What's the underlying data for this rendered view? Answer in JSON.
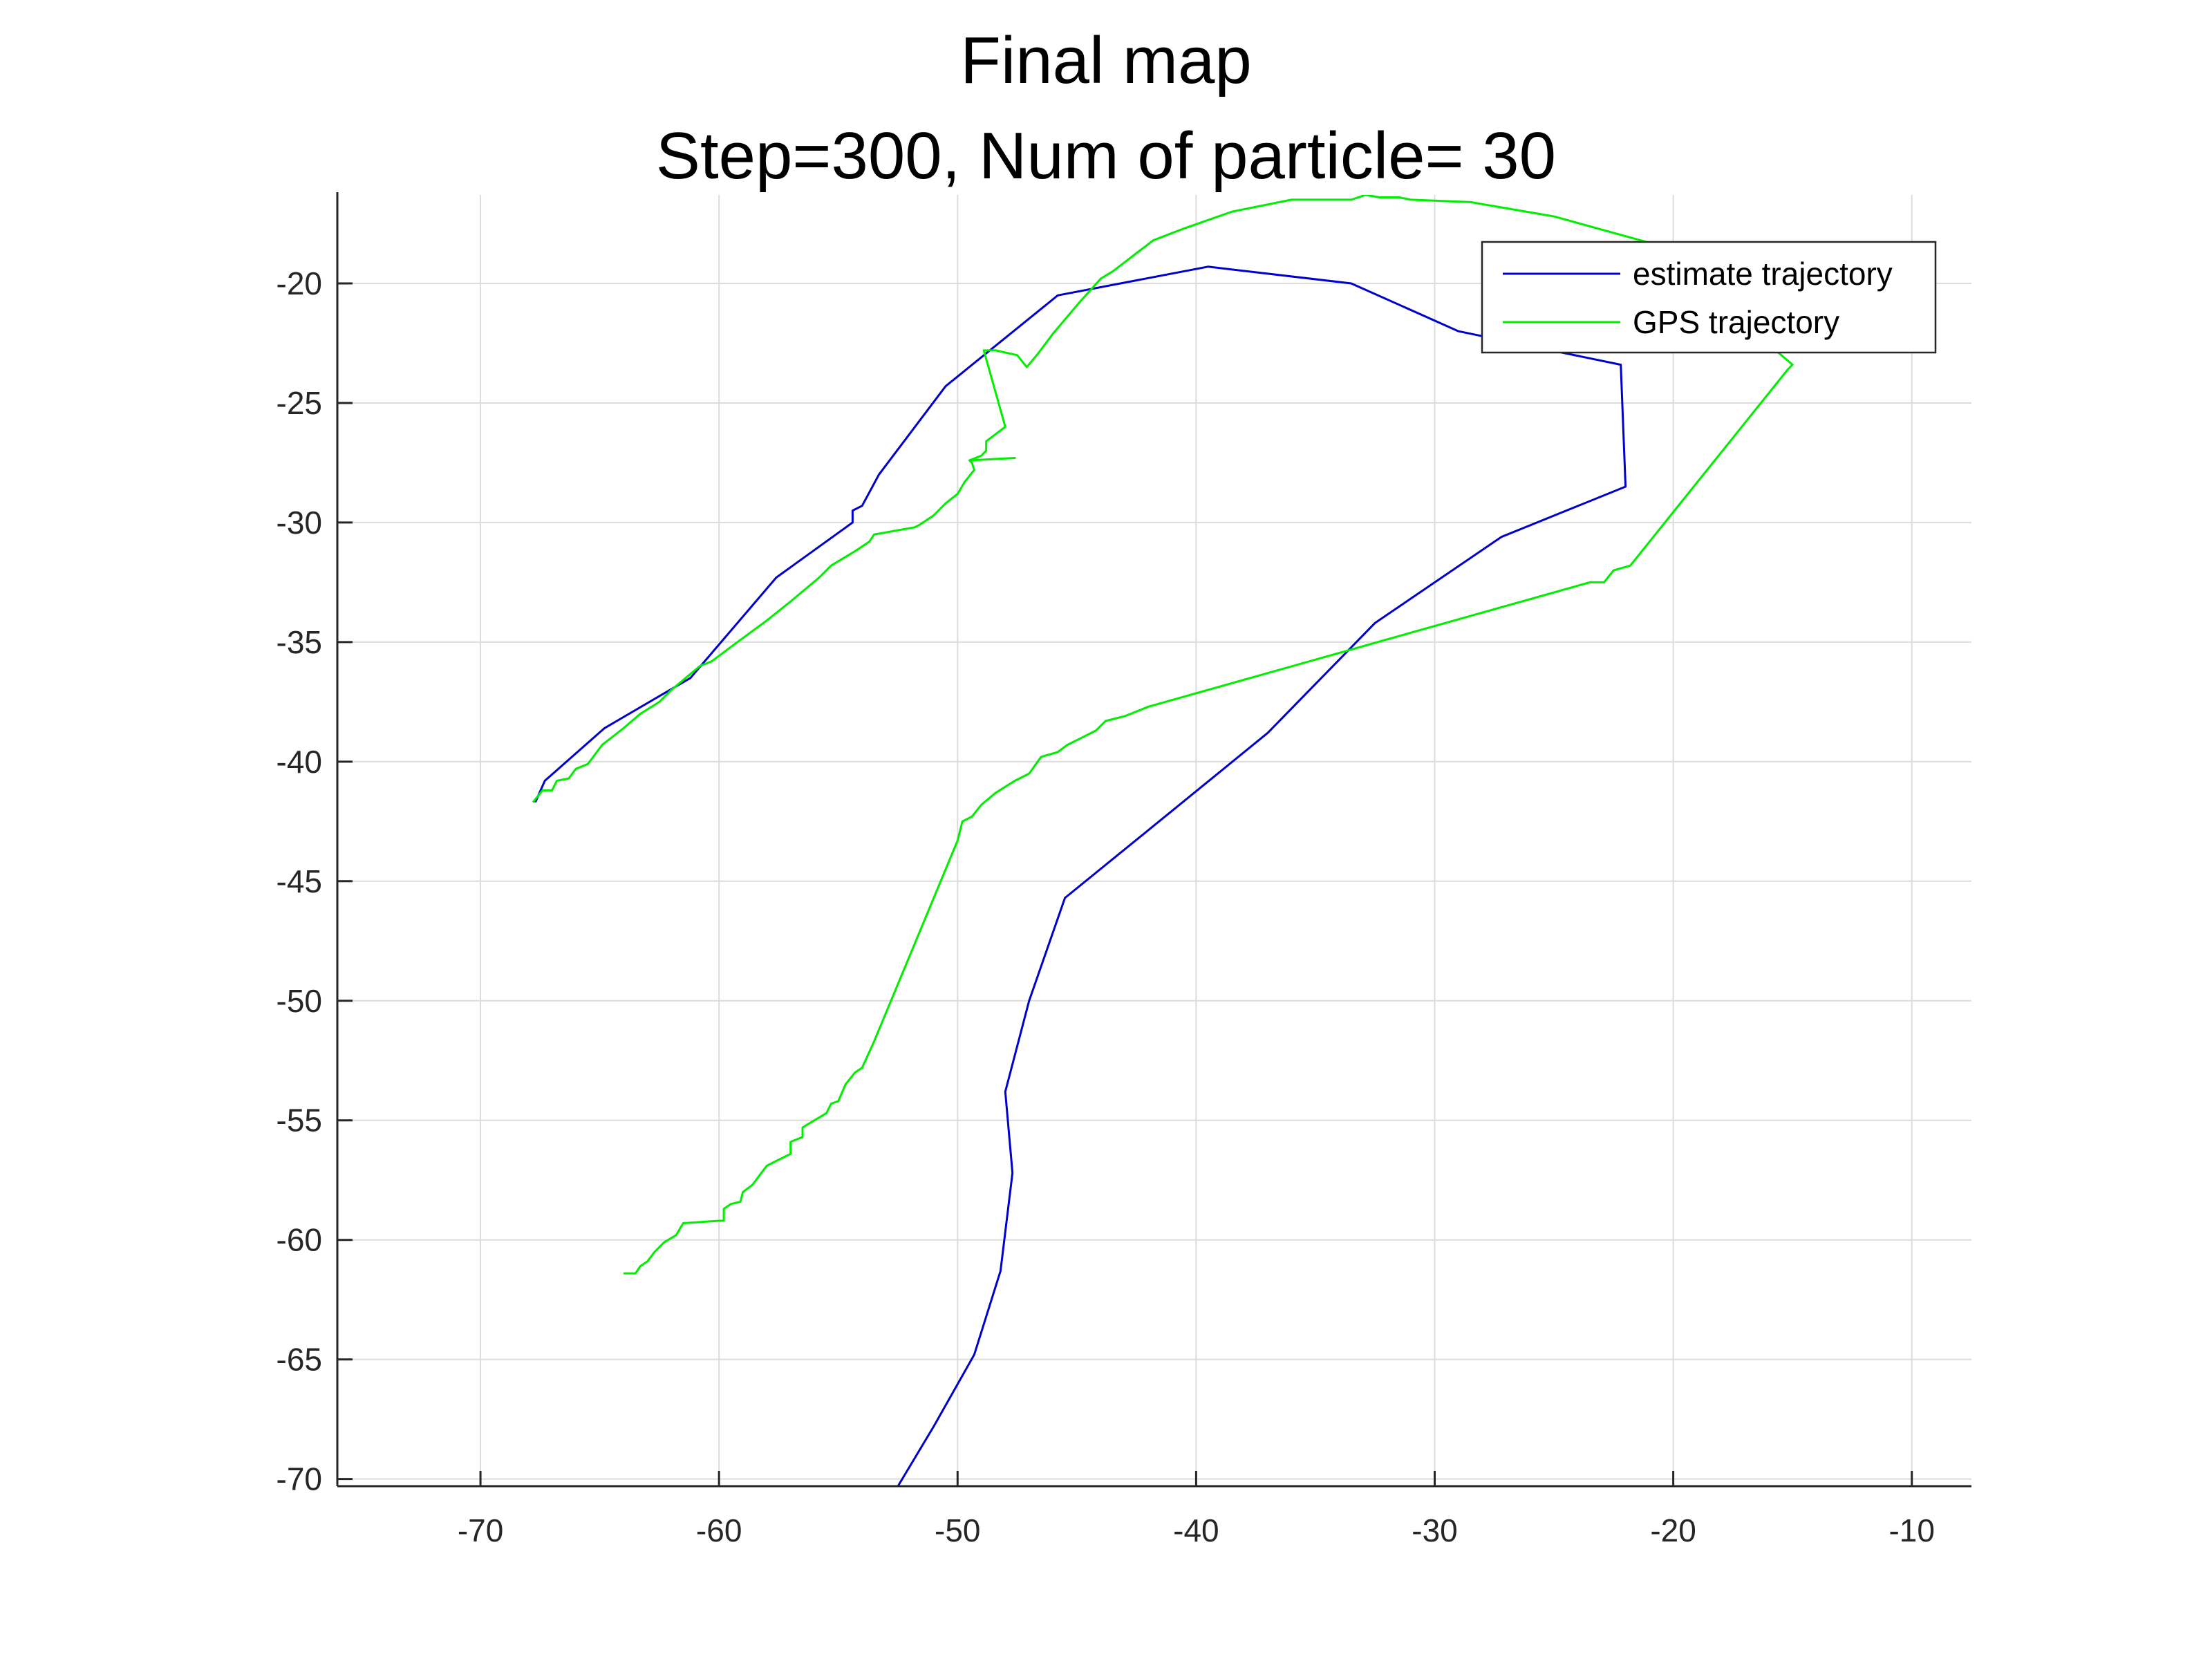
{
  "chart_data": {
    "type": "line",
    "title": "Final map",
    "subtitle": "Step=300, Num of particle= 30",
    "xlabel": "",
    "ylabel": "",
    "xlim": [
      -76,
      -7.5
    ],
    "ylim": [
      -70.3,
      -16.3
    ],
    "xticks": [
      "-70",
      "-60",
      "-50",
      "-40",
      "-30",
      "-20",
      "-10"
    ],
    "xtick_values": [
      -70,
      -60,
      -50,
      -40,
      -30,
      -20,
      -10
    ],
    "yticks": [
      "-20",
      "-25",
      "-30",
      "-35",
      "-40",
      "-45",
      "-50",
      "-55",
      "-60",
      "-65",
      "-70"
    ],
    "ytick_values": [
      -20,
      -25,
      -30,
      -35,
      -40,
      -45,
      -50,
      -55,
      -60,
      -65,
      -70
    ],
    "grid": true,
    "legend_position": "top-right",
    "series": [
      {
        "name": "estimate trajectory",
        "color": "#0000cc",
        "points": [
          [
            -67.7,
            -41.7
          ],
          [
            -67.3,
            -40.8
          ],
          [
            -64.8,
            -38.6
          ],
          [
            -61.2,
            -36.5
          ],
          [
            -57.6,
            -32.3
          ],
          [
            -54.4,
            -30.0
          ],
          [
            -54.4,
            -29.5
          ],
          [
            -54.0,
            -29.3
          ],
          [
            -53.3,
            -28.0
          ],
          [
            -50.5,
            -24.3
          ],
          [
            -45.8,
            -20.5
          ],
          [
            -39.5,
            -19.3
          ],
          [
            -33.5,
            -20.0
          ],
          [
            -29.0,
            -22.0
          ],
          [
            -22.2,
            -23.4
          ],
          [
            -22.0,
            -28.5
          ],
          [
            -27.2,
            -30.6
          ],
          [
            -32.5,
            -34.2
          ],
          [
            -37.0,
            -38.8
          ],
          [
            -41.8,
            -42.7
          ],
          [
            -45.5,
            -45.7
          ],
          [
            -47.0,
            -50.0
          ],
          [
            -48.0,
            -53.8
          ],
          [
            -47.7,
            -57.2
          ],
          [
            -48.2,
            -61.3
          ],
          [
            -49.3,
            -64.8
          ],
          [
            -51.0,
            -67.8
          ],
          [
            -52.5,
            -70.3
          ]
        ]
      },
      {
        "name": "GPS trajectory",
        "color": "#00ee00",
        "points": [
          [
            -64.0,
            -61.4
          ],
          [
            -63.5,
            -61.4
          ],
          [
            -63.3,
            -61.1
          ],
          [
            -63.0,
            -60.9
          ],
          [
            -62.7,
            -60.5
          ],
          [
            -62.3,
            -60.1
          ],
          [
            -61.8,
            -59.8
          ],
          [
            -61.5,
            -59.3
          ],
          [
            -60.0,
            -59.2
          ],
          [
            -59.8,
            -59.2
          ],
          [
            -59.8,
            -58.7
          ],
          [
            -59.5,
            -58.5
          ],
          [
            -59.1,
            -58.4
          ],
          [
            -59.0,
            -58.0
          ],
          [
            -58.6,
            -57.7
          ],
          [
            -58.3,
            -57.3
          ],
          [
            -58.0,
            -56.9
          ],
          [
            -57.6,
            -56.7
          ],
          [
            -57.0,
            -56.4
          ],
          [
            -57.0,
            -55.9
          ],
          [
            -56.5,
            -55.7
          ],
          [
            -56.5,
            -55.3
          ],
          [
            -56.0,
            -55.0
          ],
          [
            -55.5,
            -54.7
          ],
          [
            -55.3,
            -54.3
          ],
          [
            -55.0,
            -54.2
          ],
          [
            -54.7,
            -53.5
          ],
          [
            -54.3,
            -53.0
          ],
          [
            -54.0,
            -52.8
          ],
          [
            -53.5,
            -51.7
          ],
          [
            -50.0,
            -43.3
          ],
          [
            -49.8,
            -42.5
          ],
          [
            -49.4,
            -42.3
          ],
          [
            -49.0,
            -41.8
          ],
          [
            -48.4,
            -41.3
          ],
          [
            -47.6,
            -40.8
          ],
          [
            -47.0,
            -40.5
          ],
          [
            -46.5,
            -39.8
          ],
          [
            -45.8,
            -39.6
          ],
          [
            -45.4,
            -39.3
          ],
          [
            -44.8,
            -39.0
          ],
          [
            -44.2,
            -38.7
          ],
          [
            -43.8,
            -38.3
          ],
          [
            -43.0,
            -38.1
          ],
          [
            -42.0,
            -37.7
          ],
          [
            -23.5,
            -32.5
          ],
          [
            -22.9,
            -32.5
          ],
          [
            -22.5,
            -32.0
          ],
          [
            -21.8,
            -31.8
          ],
          [
            -15.2,
            -23.6
          ],
          [
            -15.0,
            -23.4
          ],
          [
            -21.0,
            -18.3
          ],
          [
            -25.0,
            -17.2
          ],
          [
            -28.5,
            -16.6
          ],
          [
            -31.0,
            -16.5
          ],
          [
            -31.5,
            -16.4
          ],
          [
            -32.3,
            -16.4
          ],
          [
            -32.9,
            -16.3
          ],
          [
            -33.5,
            -16.5
          ],
          [
            -36.0,
            -16.5
          ],
          [
            -38.5,
            -17.0
          ],
          [
            -40.5,
            -17.7
          ],
          [
            -41.8,
            -18.2
          ],
          [
            -43.5,
            -19.5
          ],
          [
            -44.0,
            -19.8
          ],
          [
            -44.9,
            -20.8
          ],
          [
            -46.0,
            -22.1
          ],
          [
            -46.6,
            -22.9
          ],
          [
            -47.1,
            -23.5
          ],
          [
            -47.5,
            -23.0
          ],
          [
            -48.4,
            -22.8
          ],
          [
            -48.9,
            -22.8
          ],
          [
            -48.9,
            -22.8
          ],
          [
            -48.0,
            -26.0
          ],
          [
            -48.4,
            -26.3
          ],
          [
            -48.8,
            -26.6
          ],
          [
            -48.8,
            -27.0
          ],
          [
            -49.0,
            -27.2
          ],
          [
            -49.5,
            -27.4
          ],
          [
            -47.6,
            -27.3
          ],
          [
            -49.5,
            -27.4
          ],
          [
            -49.4,
            -27.5
          ],
          [
            -49.3,
            -27.8
          ],
          [
            -49.7,
            -28.3
          ],
          [
            -50.0,
            -28.8
          ],
          [
            -50.5,
            -29.2
          ],
          [
            -51.0,
            -29.7
          ],
          [
            -51.6,
            -30.1
          ],
          [
            -51.8,
            -30.2
          ],
          [
            -53.5,
            -30.5
          ],
          [
            -53.7,
            -30.8
          ],
          [
            -54.3,
            -31.2
          ],
          [
            -54.8,
            -31.5
          ],
          [
            -55.3,
            -31.8
          ],
          [
            -55.8,
            -32.3
          ],
          [
            -57.0,
            -33.3
          ],
          [
            -58.0,
            -34.1
          ],
          [
            -59.5,
            -35.2
          ],
          [
            -60.3,
            -35.8
          ],
          [
            -60.8,
            -36.0
          ],
          [
            -61.4,
            -36.5
          ],
          [
            -62.0,
            -37.0
          ],
          [
            -62.5,
            -37.5
          ],
          [
            -63.3,
            -38.0
          ],
          [
            -64.0,
            -38.6
          ],
          [
            -64.9,
            -39.3
          ],
          [
            -65.5,
            -40.1
          ],
          [
            -66.0,
            -40.3
          ],
          [
            -66.3,
            -40.7
          ],
          [
            -66.8,
            -40.8
          ],
          [
            -67.0,
            -41.2
          ],
          [
            -67.4,
            -41.2
          ],
          [
            -67.8,
            -41.7
          ]
        ]
      }
    ]
  }
}
